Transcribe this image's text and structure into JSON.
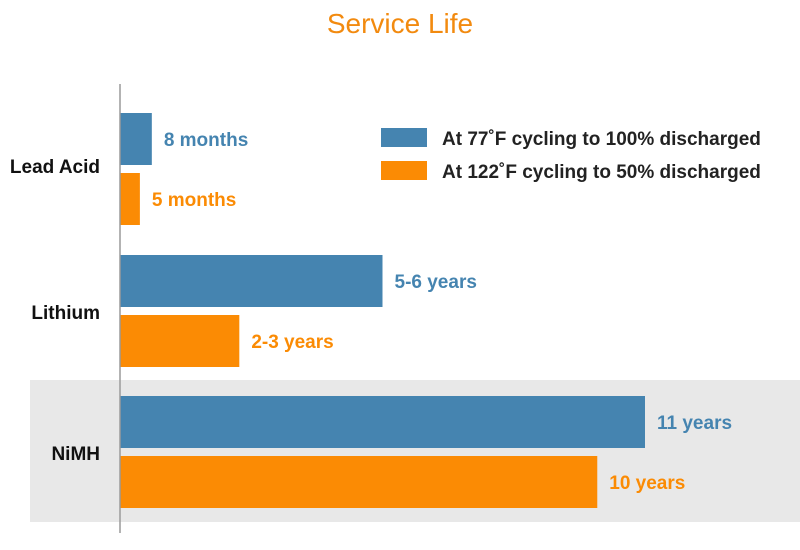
{
  "chart_data": {
    "type": "bar",
    "orientation": "horizontal",
    "title": "Service Life",
    "unit": "months",
    "categories": [
      "Lead Acid",
      "Lithium",
      "NiMH"
    ],
    "highlighted_category": "NiMH",
    "series": [
      {
        "name": "At 77˚F cycling to 100% discharged",
        "color": "#4584b0",
        "values": [
          8,
          66,
          132
        ],
        "labels": [
          "8 months",
          "5-6 years",
          "11 years"
        ]
      },
      {
        "name": "At 122˚F cycling to 50% discharged",
        "color": "#fb8b04",
        "values": [
          5,
          30,
          120
        ],
        "labels": [
          "5 months",
          "2-3 years",
          "10 years"
        ]
      }
    ],
    "legend_position": "top-right",
    "xlim": [
      0,
      132
    ]
  }
}
